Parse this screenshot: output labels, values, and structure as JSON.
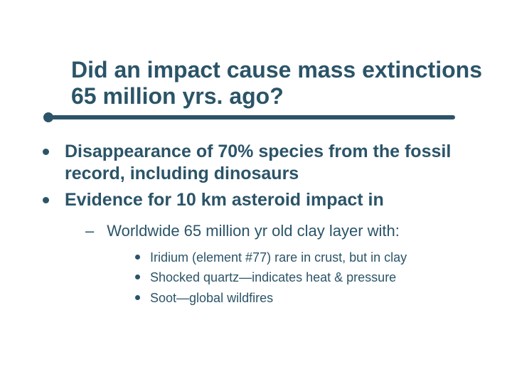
{
  "colors": {
    "text": "#2b5468",
    "background": "#ffffff",
    "accent": "#2b5468"
  },
  "typography": {
    "title_size": 32,
    "lvl1_size": 25,
    "lvl2_size": 22,
    "lvl3_size": 18,
    "font_family": "Arial"
  },
  "title": "Did an impact cause mass extinctions 65 million yrs. ago?",
  "bullets": {
    "item0": "Disappearance of 70% species from the fossil record, including dinosaurs",
    "item1": "Evidence for 10 km asteroid impact in",
    "sub0": "Worldwide 65 million yr old clay layer with:",
    "subsub0": "Iridium (element #77) rare in crust, but in clay",
    "subsub1": "Shocked quartz—indicates heat & pressure",
    "subsub2": "Soot—global wildfires"
  }
}
